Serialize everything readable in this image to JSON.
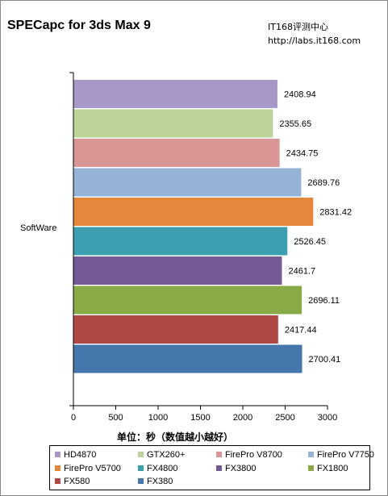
{
  "header": {
    "title": "SPECapc for 3ds Max 9",
    "source_line1": "IT168评测中心",
    "source_line2": "http://labs.it168.com"
  },
  "chart_data": {
    "type": "bar",
    "orientation": "horizontal",
    "categories": [
      "SoftWare"
    ],
    "xlabel": "单位：秒（数值越小越好）",
    "xlim": [
      0,
      3000
    ],
    "xticks": [
      0,
      500,
      1000,
      1500,
      2000,
      2500,
      3000
    ],
    "grid": false,
    "legend_placement": "bottom",
    "series": [
      {
        "name": "HD4870",
        "values": [
          2408.94
        ],
        "label": "2408.94",
        "color": "#a898c8"
      },
      {
        "name": "GTX260+",
        "values": [
          2355.65
        ],
        "label": "2355.65",
        "color": "#bcd49a"
      },
      {
        "name": "FirePro V8700",
        "values": [
          2434.75
        ],
        "label": "2434.75",
        "color": "#d99694"
      },
      {
        "name": "FirePro V7750",
        "values": [
          2689.76
        ],
        "label": "2689.76",
        "color": "#95b3d7"
      },
      {
        "name": "FirePro V5700",
        "values": [
          2831.42
        ],
        "label": "2831.42",
        "color": "#e6883c"
      },
      {
        "name": "FX4800",
        "values": [
          2526.45
        ],
        "label": "2526.45",
        "color": "#3c9fb0"
      },
      {
        "name": "FX3800",
        "values": [
          2461.7
        ],
        "label": "2461.7",
        "color": "#745a94"
      },
      {
        "name": "FX1800",
        "values": [
          2696.11
        ],
        "label": "2696.11",
        "color": "#8aaa48"
      },
      {
        "name": "FX580",
        "values": [
          2417.44
        ],
        "label": "2417.44",
        "color": "#b04846"
      },
      {
        "name": "FX380",
        "values": [
          2700.41
        ],
        "label": "2700.41",
        "color": "#4576ac"
      }
    ]
  }
}
